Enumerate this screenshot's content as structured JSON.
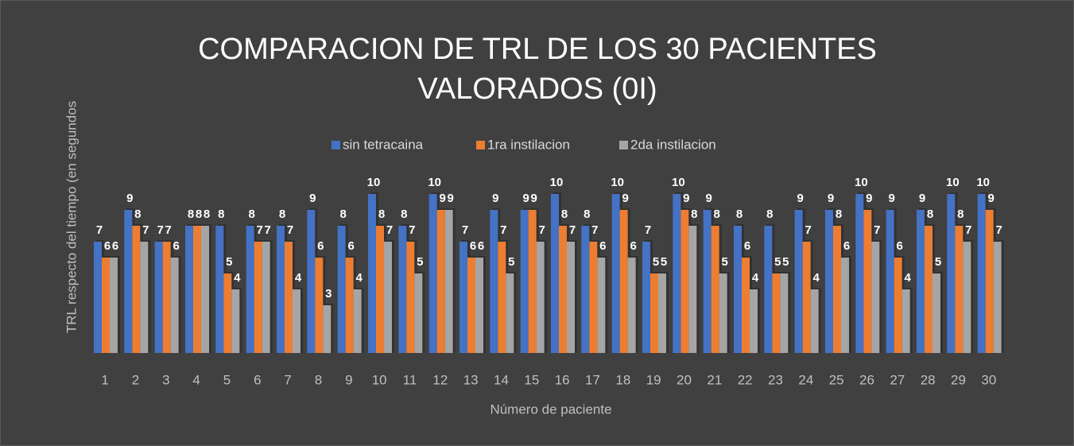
{
  "chart_data": {
    "type": "bar",
    "title": "COMPARACION DE TRL DE LOS 30 PACIENTES VALORADOS (0I)",
    "x_label": "Número de paciente",
    "y_label": "TRL respecto del tiempo (en segundos",
    "categories": [
      "1",
      "2",
      "3",
      "4",
      "5",
      "6",
      "7",
      "8",
      "9",
      "10",
      "11",
      "12",
      "13",
      "14",
      "15",
      "16",
      "17",
      "18",
      "19",
      "20",
      "21",
      "22",
      "23",
      "24",
      "25",
      "26",
      "27",
      "28",
      "29",
      "30"
    ],
    "series": [
      {
        "name": "sin tetracaina",
        "color": "#4472c4",
        "values": [
          7,
          9,
          7,
          8,
          8,
          8,
          8,
          9,
          8,
          10,
          8,
          10,
          7,
          9,
          9,
          10,
          8,
          10,
          7,
          10,
          9,
          8,
          8,
          9,
          9,
          10,
          9,
          9,
          10,
          10
        ]
      },
      {
        "name": "1ra instilacion",
        "color": "#ed7d31",
        "values": [
          6,
          8,
          7,
          8,
          5,
          7,
          7,
          6,
          6,
          8,
          7,
          9,
          6,
          7,
          9,
          8,
          7,
          9,
          5,
          9,
          8,
          6,
          5,
          7,
          8,
          9,
          6,
          8,
          8,
          9
        ]
      },
      {
        "name": "2da instilacion",
        "color": "#a5a5a5",
        "values": [
          6,
          7,
          6,
          8,
          4,
          7,
          4,
          3,
          4,
          7,
          5,
          9,
          6,
          5,
          7,
          7,
          6,
          6,
          5,
          8,
          5,
          4,
          5,
          4,
          6,
          7,
          4,
          5,
          7,
          7
        ]
      }
    ],
    "ylim": [
      0,
      12
    ],
    "legend": "top"
  }
}
